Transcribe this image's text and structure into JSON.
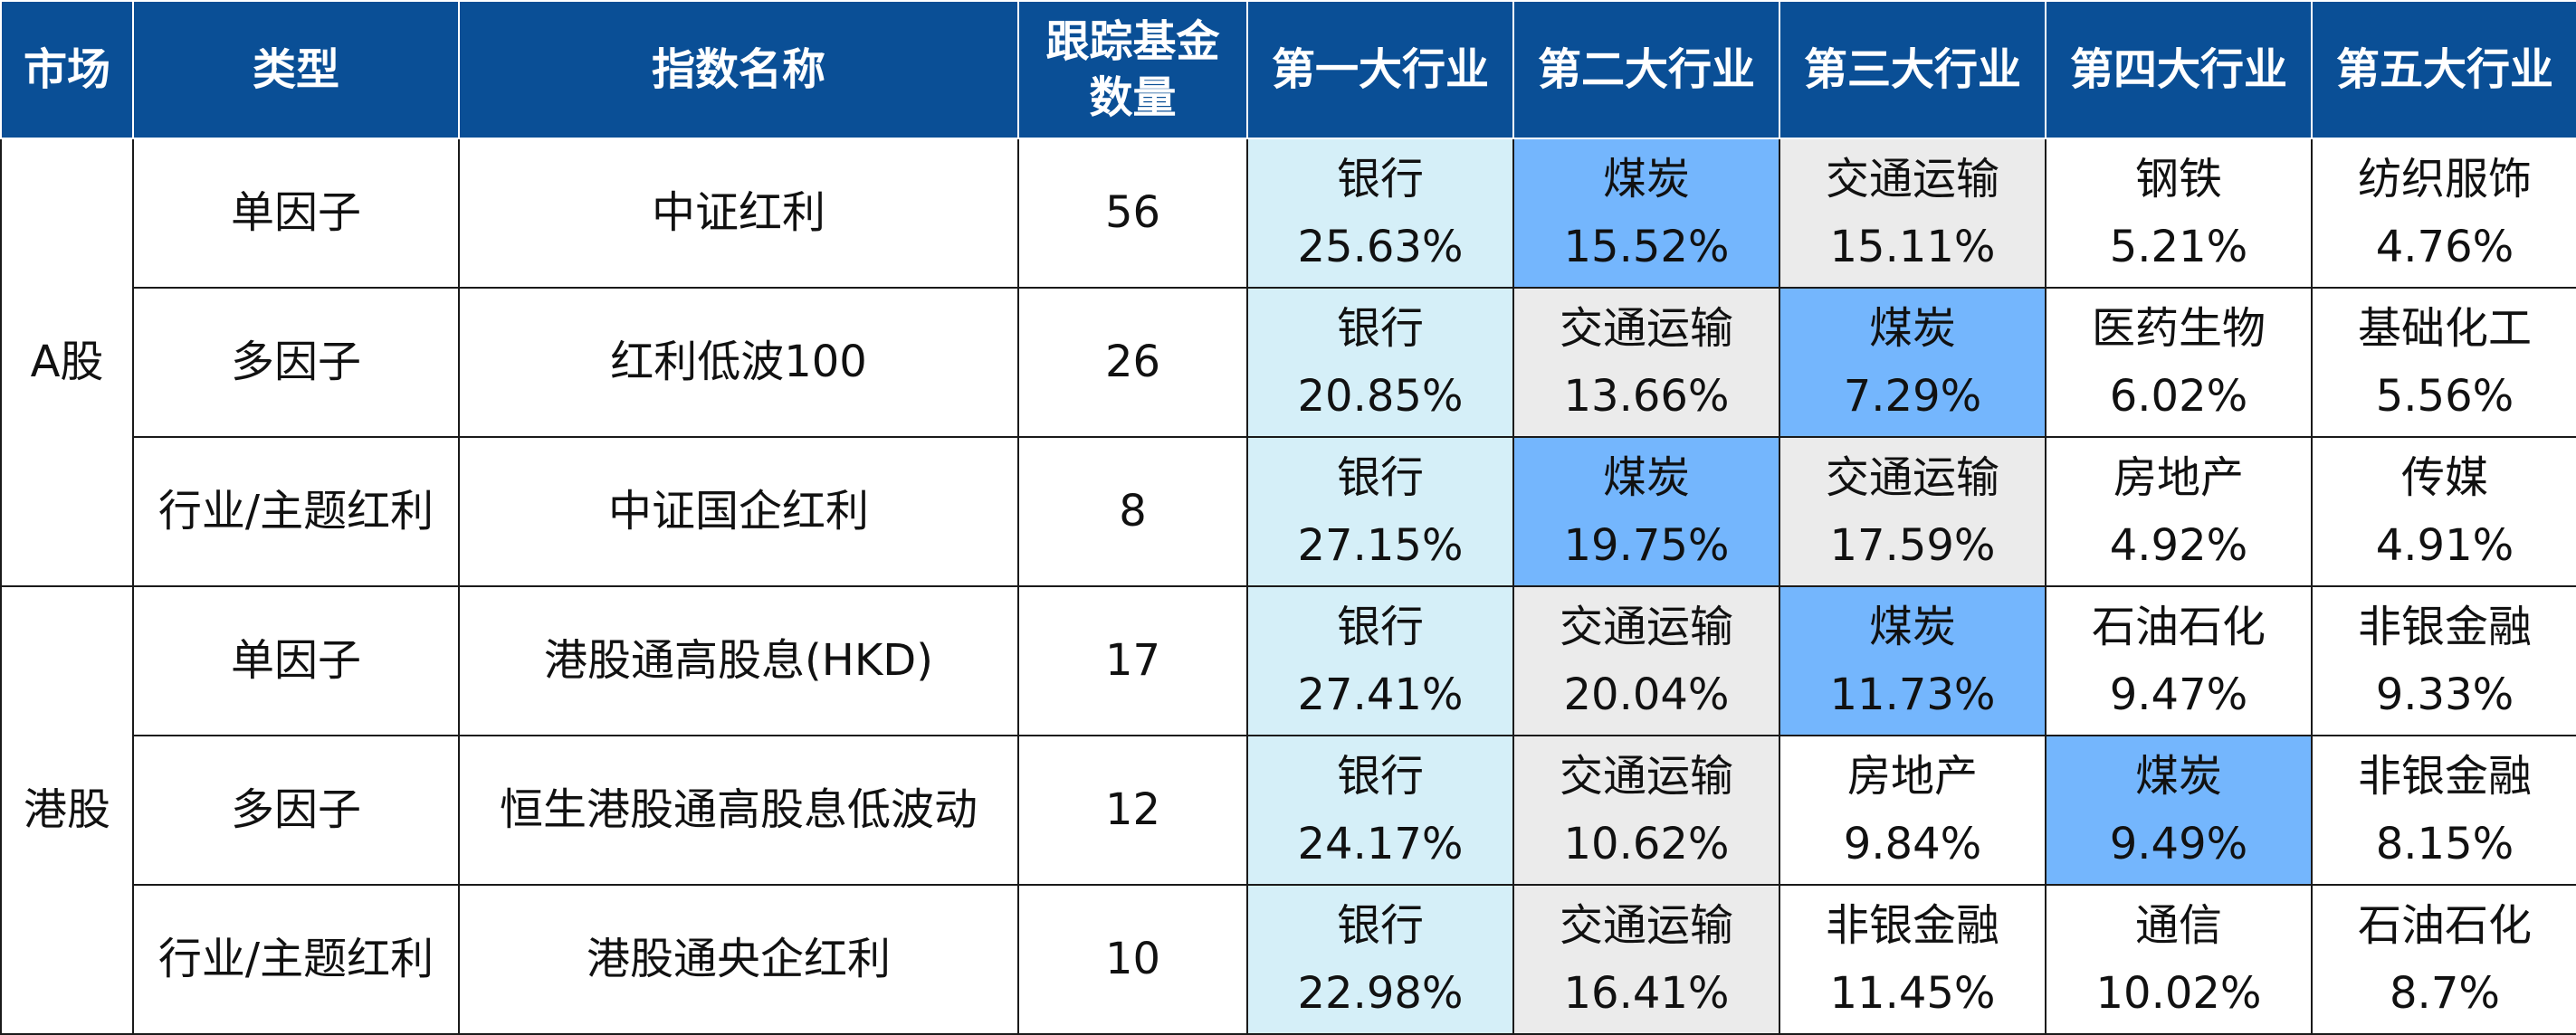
{
  "header": {
    "market": "市场",
    "type": "类型",
    "index_name": "指数名称",
    "funds_line1": "跟踪基金",
    "funds_line2": "数量",
    "ind1": "第一大行业",
    "ind2": "第二大行业",
    "ind3": "第三大行业",
    "ind4": "第四大行业",
    "ind5": "第五大行业"
  },
  "groups": [
    {
      "market": "A股",
      "rows": [
        {
          "type": "单因子",
          "index": "中证红利",
          "funds": "56",
          "industries": [
            {
              "name": "银行",
              "pct": "25.63%",
              "hl": "top1"
            },
            {
              "name": "煤炭",
              "pct": "15.52%",
              "hl": "coal"
            },
            {
              "name": "交通运输",
              "pct": "15.11%",
              "hl": "gray"
            },
            {
              "name": "钢铁",
              "pct": "5.21%",
              "hl": "none"
            },
            {
              "name": "纺织服饰",
              "pct": "4.76%",
              "hl": "none"
            }
          ]
        },
        {
          "type": "多因子",
          "index": "红利低波100",
          "funds": "26",
          "industries": [
            {
              "name": "银行",
              "pct": "20.85%",
              "hl": "top1"
            },
            {
              "name": "交通运输",
              "pct": "13.66%",
              "hl": "gray"
            },
            {
              "name": "煤炭",
              "pct": "7.29%",
              "hl": "coal"
            },
            {
              "name": "医药生物",
              "pct": "6.02%",
              "hl": "none"
            },
            {
              "name": "基础化工",
              "pct": "5.56%",
              "hl": "none"
            }
          ]
        },
        {
          "type": "行业/主题红利",
          "index": "中证国企红利",
          "funds": "8",
          "industries": [
            {
              "name": "银行",
              "pct": "27.15%",
              "hl": "top1"
            },
            {
              "name": "煤炭",
              "pct": "19.75%",
              "hl": "coal"
            },
            {
              "name": "交通运输",
              "pct": "17.59%",
              "hl": "gray"
            },
            {
              "name": "房地产",
              "pct": "4.92%",
              "hl": "none"
            },
            {
              "name": "传媒",
              "pct": "4.91%",
              "hl": "none"
            }
          ]
        }
      ]
    },
    {
      "market": "港股",
      "rows": [
        {
          "type": "单因子",
          "index": "港股通高股息(HKD)",
          "funds": "17",
          "industries": [
            {
              "name": "银行",
              "pct": "27.41%",
              "hl": "top1"
            },
            {
              "name": "交通运输",
              "pct": "20.04%",
              "hl": "gray"
            },
            {
              "name": "煤炭",
              "pct": "11.73%",
              "hl": "coal"
            },
            {
              "name": "石油石化",
              "pct": "9.47%",
              "hl": "none"
            },
            {
              "name": "非银金融",
              "pct": "9.33%",
              "hl": "none"
            }
          ]
        },
        {
          "type": "多因子",
          "index": "恒生港股通高股息低波动",
          "funds": "12",
          "industries": [
            {
              "name": "银行",
              "pct": "24.17%",
              "hl": "top1"
            },
            {
              "name": "交通运输",
              "pct": "10.62%",
              "hl": "gray"
            },
            {
              "name": "房地产",
              "pct": "9.84%",
              "hl": "none"
            },
            {
              "name": "煤炭",
              "pct": "9.49%",
              "hl": "coal"
            },
            {
              "name": "非银金融",
              "pct": "8.15%",
              "hl": "none"
            }
          ]
        },
        {
          "type": "行业/主题红利",
          "index": "港股通央企红利",
          "funds": "10",
          "industries": [
            {
              "name": "银行",
              "pct": "22.98%",
              "hl": "top1"
            },
            {
              "name": "交通运输",
              "pct": "16.41%",
              "hl": "gray"
            },
            {
              "name": "非银金融",
              "pct": "11.45%",
              "hl": "none"
            },
            {
              "name": "通信",
              "pct": "10.02%",
              "hl": "none"
            },
            {
              "name": "石油石化",
              "pct": "8.7%",
              "hl": "none"
            }
          ]
        }
      ]
    }
  ],
  "colors": {
    "header_bg": "#0a4f96",
    "header_text": "#ffffff",
    "top1_bg": "#d5eff8",
    "coal_bg": "#74b6fd",
    "transport_bg": "#ebebeb",
    "border": "#1a1a1a"
  }
}
